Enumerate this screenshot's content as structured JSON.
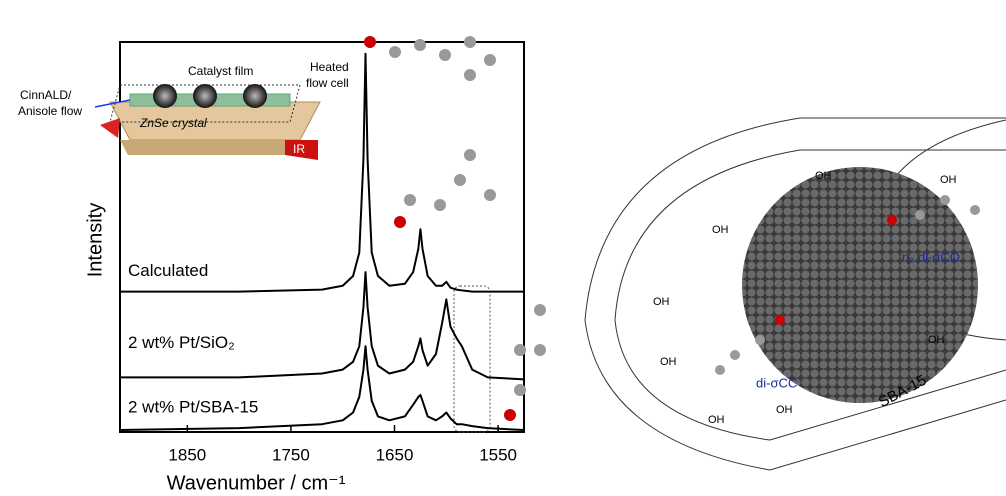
{
  "chart_data": {
    "type": "line",
    "x_label": "Wavenumber / cm⁻¹",
    "y_label": "Intensity",
    "xlim": [
      1915,
      1525
    ],
    "ylim": [
      0,
      100
    ],
    "xticks": [
      1850,
      1750,
      1650,
      1550
    ],
    "x": [
      1915,
      1800,
      1720,
      1700,
      1690,
      1684,
      1680,
      1678,
      1676,
      1672,
      1666,
      1655,
      1640,
      1632,
      1627,
      1625,
      1623,
      1618,
      1610,
      1604,
      1600,
      1596,
      1590,
      1585,
      1575,
      1560,
      1525
    ],
    "series": [
      {
        "name": "Calculated",
        "color": "#000000",
        "values": [
          36,
          36,
          36.5,
          37.5,
          40,
          46,
          70,
          97,
          70,
          46,
          40,
          37.5,
          38,
          41,
          47,
          52,
          47,
          40,
          37.5,
          37.5,
          38.5,
          37,
          36.5,
          36.3,
          36,
          36,
          36
        ]
      },
      {
        "name": "2 wt% Pt/SiO₂",
        "color": "#000000",
        "values": [
          14,
          14,
          15,
          16,
          18,
          22,
          32,
          41,
          32,
          22,
          17,
          15,
          16,
          18,
          22,
          24,
          21,
          17,
          20,
          28,
          34,
          27,
          24,
          22,
          16,
          14,
          13.5
        ]
      },
      {
        "name": "2 wt% Pt/SBA-15",
        "color": "#000000",
        "values": [
          0.5,
          1,
          2,
          3,
          5,
          9,
          16,
          22,
          16,
          8,
          4,
          3,
          4,
          7,
          9,
          9.5,
          8,
          4,
          3,
          4,
          5,
          3.5,
          2,
          2,
          1.5,
          1,
          0.5
        ]
      }
    ]
  },
  "inset": {
    "catalyst": "Catalyst film",
    "cell": [
      "Heated",
      "flow cell"
    ],
    "flow": [
      "CinnALD/",
      "Anisole flow"
    ],
    "crystal": "ZnSe crystal",
    "ir": "IR"
  },
  "scheme": {
    "oh": [
      "OH",
      "OH",
      "OH",
      "OH",
      "OH",
      "OH",
      "OH",
      "OH"
    ],
    "co": "η₂ di-σCO",
    "cc": "di-σCC",
    "support": "SBA-15"
  }
}
